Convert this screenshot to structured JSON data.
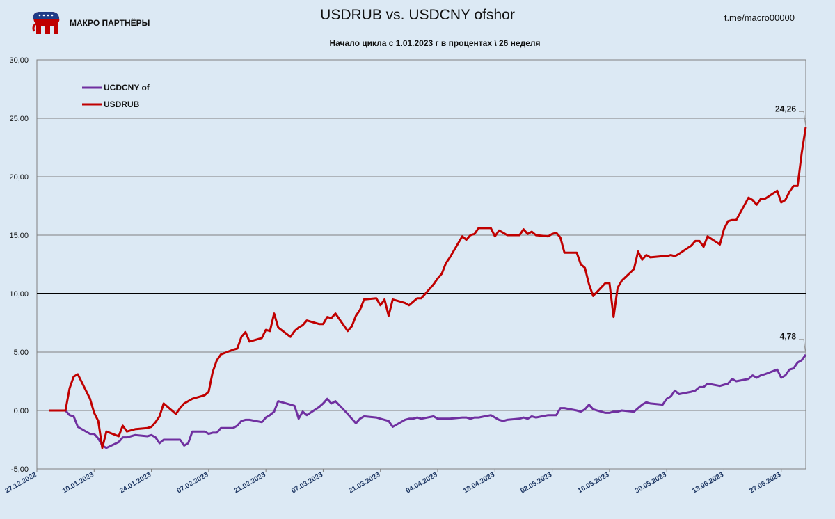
{
  "header": {
    "brand": "МАКРО ПАРТНЁРЫ",
    "channel": "t.me/macro00000"
  },
  "colors": {
    "usdcny": "#7030a0",
    "usdrub": "#c00000",
    "background": "#dce9f4"
  },
  "chart_data": {
    "type": "line",
    "title": "USDRUB vs. USDCNY ofshor",
    "subtitle": "Начало цикла с 1.01.2023 г в процентах  \\ 26 неделя",
    "xlabel": "",
    "ylabel": "",
    "ylim": [
      -5,
      30
    ],
    "yticks": [
      -5,
      0,
      5,
      10,
      15,
      20,
      25,
      30
    ],
    "ytick_labels": [
      "-5,00",
      "0,00",
      "5,00",
      "10,00",
      "15,00",
      "20,00",
      "25,00",
      "30,00"
    ],
    "xlim": [
      "2022-12-27",
      "2023-07-03"
    ],
    "xtick_labels": [
      "27.12.2022",
      "10.01.2023",
      "24.01.2023",
      "07.02.2023",
      "21.02.2023",
      "07.03.2023",
      "21.03.2023",
      "04.04.2023",
      "18.04.2023",
      "02.05.2023",
      "16.05.2023",
      "30.05.2023",
      "13.06.2023",
      "27.06.2023"
    ],
    "reference_line": 10,
    "legend": {
      "position": "top-left"
    },
    "grid": "horizontal",
    "series": [
      {
        "name": "UCDCNY of",
        "color": "#7030a0",
        "end_label": "4,78",
        "points": [
          [
            "2022-12-30",
            0
          ],
          [
            "2023-01-02",
            0
          ],
          [
            "2023-01-03",
            0
          ],
          [
            "2023-01-04",
            -0.4
          ],
          [
            "2023-01-05",
            -0.5
          ],
          [
            "2023-01-06",
            -1.4
          ],
          [
            "2023-01-09",
            -2.0
          ],
          [
            "2023-01-10",
            -2.0
          ],
          [
            "2023-01-11",
            -2.4
          ],
          [
            "2023-01-12",
            -3.0
          ],
          [
            "2023-01-13",
            -3.2
          ],
          [
            "2023-01-16",
            -2.7
          ],
          [
            "2023-01-17",
            -2.3
          ],
          [
            "2023-01-18",
            -2.3
          ],
          [
            "2023-01-19",
            -2.2
          ],
          [
            "2023-01-20",
            -2.1
          ],
          [
            "2023-01-23",
            -2.2
          ],
          [
            "2023-01-24",
            -2.1
          ],
          [
            "2023-01-25",
            -2.3
          ],
          [
            "2023-01-26",
            -2.8
          ],
          [
            "2023-01-27",
            -2.5
          ],
          [
            "2023-01-30",
            -2.5
          ],
          [
            "2023-01-31",
            -2.5
          ],
          [
            "2023-02-01",
            -3.0
          ],
          [
            "2023-02-02",
            -2.8
          ],
          [
            "2023-02-03",
            -1.8
          ],
          [
            "2023-02-06",
            -1.8
          ],
          [
            "2023-02-07",
            -2.0
          ],
          [
            "2023-02-08",
            -1.9
          ],
          [
            "2023-02-09",
            -1.9
          ],
          [
            "2023-02-10",
            -1.5
          ],
          [
            "2023-02-13",
            -1.5
          ],
          [
            "2023-02-14",
            -1.3
          ],
          [
            "2023-02-15",
            -0.9
          ],
          [
            "2023-02-16",
            -0.8
          ],
          [
            "2023-02-17",
            -0.8
          ],
          [
            "2023-02-20",
            -1.0
          ],
          [
            "2023-02-21",
            -0.6
          ],
          [
            "2023-02-22",
            -0.4
          ],
          [
            "2023-02-23",
            -0.1
          ],
          [
            "2023-02-24",
            0.8
          ],
          [
            "2023-02-27",
            0.5
          ],
          [
            "2023-02-28",
            0.4
          ],
          [
            "2023-03-01",
            -0.7
          ],
          [
            "2023-03-02",
            -0.1
          ],
          [
            "2023-03-03",
            -0.4
          ],
          [
            "2023-03-06",
            0.3
          ],
          [
            "2023-03-07",
            0.6
          ],
          [
            "2023-03-08",
            1.0
          ],
          [
            "2023-03-09",
            0.6
          ],
          [
            "2023-03-10",
            0.8
          ],
          [
            "2023-03-13",
            -0.3
          ],
          [
            "2023-03-14",
            -0.7
          ],
          [
            "2023-03-15",
            -1.1
          ],
          [
            "2023-03-16",
            -0.7
          ],
          [
            "2023-03-17",
            -0.5
          ],
          [
            "2023-03-20",
            -0.6
          ],
          [
            "2023-03-21",
            -0.7
          ],
          [
            "2023-03-22",
            -0.8
          ],
          [
            "2023-03-23",
            -0.9
          ],
          [
            "2023-03-24",
            -1.4
          ],
          [
            "2023-03-27",
            -0.8
          ],
          [
            "2023-03-28",
            -0.7
          ],
          [
            "2023-03-29",
            -0.7
          ],
          [
            "2023-03-30",
            -0.6
          ],
          [
            "2023-03-31",
            -0.7
          ],
          [
            "2023-04-03",
            -0.5
          ],
          [
            "2023-04-04",
            -0.7
          ],
          [
            "2023-04-05",
            -0.7
          ],
          [
            "2023-04-06",
            -0.7
          ],
          [
            "2023-04-07",
            -0.7
          ],
          [
            "2023-04-10",
            -0.6
          ],
          [
            "2023-04-11",
            -0.6
          ],
          [
            "2023-04-12",
            -0.7
          ],
          [
            "2023-04-13",
            -0.6
          ],
          [
            "2023-04-14",
            -0.6
          ],
          [
            "2023-04-17",
            -0.4
          ],
          [
            "2023-04-18",
            -0.6
          ],
          [
            "2023-04-19",
            -0.8
          ],
          [
            "2023-04-20",
            -0.9
          ],
          [
            "2023-04-21",
            -0.8
          ],
          [
            "2023-04-24",
            -0.7
          ],
          [
            "2023-04-25",
            -0.6
          ],
          [
            "2023-04-26",
            -0.7
          ],
          [
            "2023-04-27",
            -0.5
          ],
          [
            "2023-04-28",
            -0.6
          ],
          [
            "2023-05-01",
            -0.4
          ],
          [
            "2023-05-02",
            -0.4
          ],
          [
            "2023-05-03",
            -0.4
          ],
          [
            "2023-05-04",
            0.2
          ],
          [
            "2023-05-05",
            0.2
          ],
          [
            "2023-05-08",
            0.0
          ],
          [
            "2023-05-09",
            -0.1
          ],
          [
            "2023-05-10",
            0.1
          ],
          [
            "2023-05-11",
            0.5
          ],
          [
            "2023-05-12",
            0.1
          ],
          [
            "2023-05-15",
            -0.2
          ],
          [
            "2023-05-16",
            -0.2
          ],
          [
            "2023-05-17",
            -0.1
          ],
          [
            "2023-05-18",
            -0.1
          ],
          [
            "2023-05-19",
            0.0
          ],
          [
            "2023-05-22",
            -0.1
          ],
          [
            "2023-05-23",
            0.2
          ],
          [
            "2023-05-24",
            0.5
          ],
          [
            "2023-05-25",
            0.7
          ],
          [
            "2023-05-26",
            0.6
          ],
          [
            "2023-05-29",
            0.5
          ],
          [
            "2023-05-30",
            1.0
          ],
          [
            "2023-05-31",
            1.2
          ],
          [
            "2023-06-01",
            1.7
          ],
          [
            "2023-06-02",
            1.4
          ],
          [
            "2023-06-05",
            1.6
          ],
          [
            "2023-06-06",
            1.7
          ],
          [
            "2023-06-07",
            2.0
          ],
          [
            "2023-06-08",
            2.0
          ],
          [
            "2023-06-09",
            2.3
          ],
          [
            "2023-06-12",
            2.1
          ],
          [
            "2023-06-13",
            2.2
          ],
          [
            "2023-06-14",
            2.3
          ],
          [
            "2023-06-15",
            2.7
          ],
          [
            "2023-06-16",
            2.5
          ],
          [
            "2023-06-19",
            2.7
          ],
          [
            "2023-06-20",
            3.0
          ],
          [
            "2023-06-21",
            2.8
          ],
          [
            "2023-06-22",
            3.0
          ],
          [
            "2023-06-23",
            3.1
          ],
          [
            "2023-06-26",
            3.5
          ],
          [
            "2023-06-27",
            2.8
          ],
          [
            "2023-06-28",
            3.0
          ],
          [
            "2023-06-29",
            3.5
          ],
          [
            "2023-06-30",
            3.6
          ],
          [
            "2023-07-01",
            4.1
          ],
          [
            "2023-07-02",
            4.3
          ],
          [
            "2023-07-03",
            4.78
          ]
        ]
      },
      {
        "name": "USDRUB",
        "color": "#c00000",
        "end_label": "24,26",
        "points": [
          [
            "2022-12-30",
            0
          ],
          [
            "2023-01-02",
            0
          ],
          [
            "2023-01-03",
            0
          ],
          [
            "2023-01-04",
            1.9
          ],
          [
            "2023-01-05",
            2.9
          ],
          [
            "2023-01-06",
            3.1
          ],
          [
            "2023-01-09",
            1.0
          ],
          [
            "2023-01-10",
            -0.2
          ],
          [
            "2023-01-11",
            -0.9
          ],
          [
            "2023-01-12",
            -3.2
          ],
          [
            "2023-01-13",
            -1.8
          ],
          [
            "2023-01-16",
            -2.2
          ],
          [
            "2023-01-17",
            -1.3
          ],
          [
            "2023-01-18",
            -1.8
          ],
          [
            "2023-01-19",
            -1.7
          ],
          [
            "2023-01-20",
            -1.6
          ],
          [
            "2023-01-23",
            -1.5
          ],
          [
            "2023-01-24",
            -1.4
          ],
          [
            "2023-01-25",
            -1.0
          ],
          [
            "2023-01-26",
            -0.5
          ],
          [
            "2023-01-27",
            0.6
          ],
          [
            "2023-01-30",
            -0.3
          ],
          [
            "2023-01-31",
            0.2
          ],
          [
            "2023-02-01",
            0.6
          ],
          [
            "2023-02-02",
            0.8
          ],
          [
            "2023-02-03",
            1.0
          ],
          [
            "2023-02-06",
            1.3
          ],
          [
            "2023-02-07",
            1.6
          ],
          [
            "2023-02-08",
            3.3
          ],
          [
            "2023-02-09",
            4.3
          ],
          [
            "2023-02-10",
            4.8
          ],
          [
            "2023-02-13",
            5.2
          ],
          [
            "2023-02-14",
            5.3
          ],
          [
            "2023-02-15",
            6.3
          ],
          [
            "2023-02-16",
            6.7
          ],
          [
            "2023-02-17",
            5.9
          ],
          [
            "2023-02-20",
            6.2
          ],
          [
            "2023-02-21",
            6.9
          ],
          [
            "2023-02-22",
            6.8
          ],
          [
            "2023-02-23",
            8.3
          ],
          [
            "2023-02-24",
            7.1
          ],
          [
            "2023-02-27",
            6.3
          ],
          [
            "2023-02-28",
            6.8
          ],
          [
            "2023-03-01",
            7.1
          ],
          [
            "2023-03-02",
            7.3
          ],
          [
            "2023-03-03",
            7.7
          ],
          [
            "2023-03-06",
            7.4
          ],
          [
            "2023-03-07",
            7.4
          ],
          [
            "2023-03-08",
            8.0
          ],
          [
            "2023-03-09",
            7.9
          ],
          [
            "2023-03-10",
            8.3
          ],
          [
            "2023-03-13",
            6.8
          ],
          [
            "2023-03-14",
            7.2
          ],
          [
            "2023-03-15",
            8.1
          ],
          [
            "2023-03-16",
            8.6
          ],
          [
            "2023-03-17",
            9.5
          ],
          [
            "2023-03-20",
            9.6
          ],
          [
            "2023-03-21",
            9.0
          ],
          [
            "2023-03-22",
            9.5
          ],
          [
            "2023-03-23",
            8.1
          ],
          [
            "2023-03-24",
            9.5
          ],
          [
            "2023-03-27",
            9.2
          ],
          [
            "2023-03-28",
            9.0
          ],
          [
            "2023-03-29",
            9.3
          ],
          [
            "2023-03-30",
            9.6
          ],
          [
            "2023-03-31",
            9.6
          ],
          [
            "2023-04-03",
            10.8
          ],
          [
            "2023-04-04",
            11.3
          ],
          [
            "2023-04-05",
            11.7
          ],
          [
            "2023-04-06",
            12.6
          ],
          [
            "2023-04-07",
            13.1
          ],
          [
            "2023-04-10",
            14.9
          ],
          [
            "2023-04-11",
            14.6
          ],
          [
            "2023-04-12",
            15.0
          ],
          [
            "2023-04-13",
            15.1
          ],
          [
            "2023-04-14",
            15.6
          ],
          [
            "2023-04-17",
            15.6
          ],
          [
            "2023-04-18",
            14.9
          ],
          [
            "2023-04-19",
            15.4
          ],
          [
            "2023-04-20",
            15.2
          ],
          [
            "2023-04-21",
            15.0
          ],
          [
            "2023-04-24",
            15.0
          ],
          [
            "2023-04-25",
            15.5
          ],
          [
            "2023-04-26",
            15.1
          ],
          [
            "2023-04-27",
            15.3
          ],
          [
            "2023-04-28",
            15.0
          ],
          [
            "2023-05-01",
            14.9
          ],
          [
            "2023-05-02",
            15.1
          ],
          [
            "2023-05-03",
            15.2
          ],
          [
            "2023-05-04",
            14.8
          ],
          [
            "2023-05-05",
            13.5
          ],
          [
            "2023-05-08",
            13.5
          ],
          [
            "2023-05-09",
            12.5
          ],
          [
            "2023-05-10",
            12.2
          ],
          [
            "2023-05-11",
            10.8
          ],
          [
            "2023-05-12",
            9.8
          ],
          [
            "2023-05-15",
            10.9
          ],
          [
            "2023-05-16",
            10.9
          ],
          [
            "2023-05-17",
            8.0
          ],
          [
            "2023-05-18",
            10.5
          ],
          [
            "2023-05-19",
            11.1
          ],
          [
            "2023-05-22",
            12.1
          ],
          [
            "2023-05-23",
            13.6
          ],
          [
            "2023-05-24",
            12.9
          ],
          [
            "2023-05-25",
            13.3
          ],
          [
            "2023-05-26",
            13.1
          ],
          [
            "2023-05-29",
            13.2
          ],
          [
            "2023-05-30",
            13.2
          ],
          [
            "2023-05-31",
            13.3
          ],
          [
            "2023-06-01",
            13.2
          ],
          [
            "2023-06-02",
            13.4
          ],
          [
            "2023-06-05",
            14.1
          ],
          [
            "2023-06-06",
            14.5
          ],
          [
            "2023-06-07",
            14.5
          ],
          [
            "2023-06-08",
            14.0
          ],
          [
            "2023-06-09",
            14.9
          ],
          [
            "2023-06-12",
            14.2
          ],
          [
            "2023-06-13",
            15.5
          ],
          [
            "2023-06-14",
            16.2
          ],
          [
            "2023-06-15",
            16.3
          ],
          [
            "2023-06-16",
            16.3
          ],
          [
            "2023-06-19",
            18.2
          ],
          [
            "2023-06-20",
            18.0
          ],
          [
            "2023-06-21",
            17.6
          ],
          [
            "2023-06-22",
            18.1
          ],
          [
            "2023-06-23",
            18.1
          ],
          [
            "2023-06-26",
            18.8
          ],
          [
            "2023-06-27",
            17.8
          ],
          [
            "2023-06-28",
            18.0
          ],
          [
            "2023-06-29",
            18.7
          ],
          [
            "2023-06-30",
            19.2
          ],
          [
            "2023-07-01",
            19.2
          ],
          [
            "2023-07-02",
            22.0
          ],
          [
            "2023-07-03",
            24.26
          ]
        ]
      }
    ]
  }
}
